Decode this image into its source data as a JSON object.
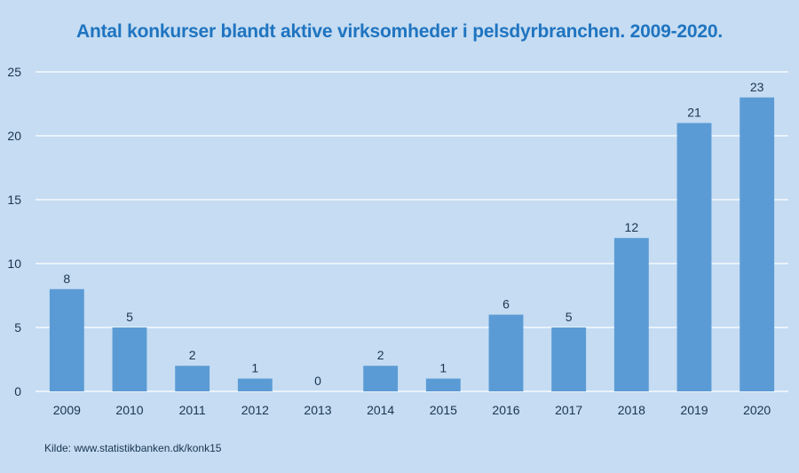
{
  "chart_data": {
    "type": "bar",
    "title": "Antal konkurser blandt aktive virksomheder i pelsdyrbranchen. 2009-2020.",
    "categories": [
      "2009",
      "2010",
      "2011",
      "2012",
      "2013",
      "2014",
      "2015",
      "2016",
      "2017",
      "2018",
      "2019",
      "2020"
    ],
    "values": [
      8,
      5,
      2,
      1,
      0,
      2,
      1,
      6,
      5,
      12,
      21,
      23
    ],
    "xlabel": "",
    "ylabel": "",
    "ylim": [
      0,
      25
    ],
    "yticks": [
      "0",
      "5",
      "10",
      "15",
      "20",
      "25"
    ],
    "grid": true,
    "legend": "none",
    "data_labels": true,
    "colors": {
      "bar": "#5b9bd5",
      "background": "#c5dcf2",
      "gridline": "#ffffff",
      "title": "#1f74c0",
      "text": "#1a3550"
    }
  },
  "source": "Kilde: www.statistikbanken.dk/konk15"
}
